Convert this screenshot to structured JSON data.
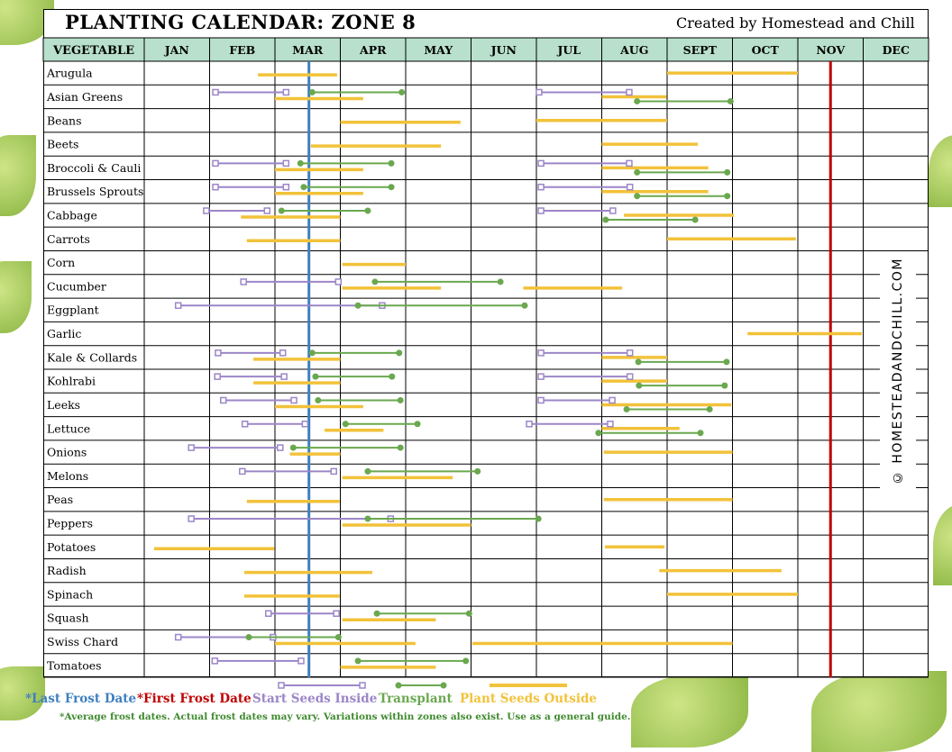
{
  "title": "PLANTING CALENDAR: ZONE 8",
  "credit": "Created by Homestead and Chill",
  "watermark": "© HOMESTEADANDCHILL.COM",
  "legend": {
    "last_frost": "*Last Frost Date",
    "first_frost": "*First Frost Date",
    "inside": "Start Seeds Inside",
    "transplant": "Transplant",
    "outside": "Plant Seeds Outside"
  },
  "note": "*Average frost dates. Actual frost dates may vary. Variations within zones also exist. Use as a general guide.",
  "colors": {
    "header": "#b8e0cc",
    "inside": "#9c86c8",
    "transplant": "#6aa84f",
    "outside": "#f2c23a",
    "last_frost": "#3d7fc0",
    "first_frost": "#c00000"
  },
  "chart_data": {
    "type": "gantt",
    "header_label": "Vegetable",
    "months": [
      "Jan",
      "Feb",
      "Mar",
      "Apr",
      "May",
      "Jun",
      "Jul",
      "Aug",
      "Sept",
      "Oct",
      "Nov",
      "Dec"
    ],
    "x_units": "months from Jan 1 (0-12)",
    "last_frost": 2.52,
    "first_frost": 10.5,
    "rows": [
      {
        "name": "Arugula",
        "inside": [],
        "transplant": [],
        "outside": [
          [
            1.74,
            2.95
          ],
          [
            8.0,
            10.0
          ]
        ]
      },
      {
        "name": "Asian Greens",
        "inside": [
          [
            1.09,
            2.17
          ],
          [
            6.04,
            7.42
          ]
        ],
        "transplant": [
          [
            2.57,
            3.94
          ],
          [
            7.54,
            8.97
          ]
        ],
        "outside": [
          [
            2.0,
            3.35
          ],
          [
            7.0,
            7.99
          ]
        ]
      },
      {
        "name": "Beans",
        "inside": [],
        "transplant": [],
        "outside": [
          [
            3.0,
            4.84
          ],
          [
            6.0,
            8.0
          ]
        ]
      },
      {
        "name": "Beets",
        "inside": [],
        "transplant": [],
        "outside": [
          [
            2.55,
            4.54
          ],
          [
            7.0,
            8.47
          ]
        ]
      },
      {
        "name": "Broccoli & Cauli",
        "inside": [
          [
            1.09,
            2.17
          ],
          [
            6.07,
            7.42
          ]
        ],
        "transplant": [
          [
            2.39,
            3.78
          ],
          [
            7.54,
            8.92
          ]
        ],
        "outside": [
          [
            2.0,
            3.35
          ],
          [
            7.0,
            8.63
          ]
        ]
      },
      {
        "name": "Brussels Sprouts",
        "inside": [
          [
            1.09,
            2.17
          ],
          [
            6.07,
            7.43
          ]
        ],
        "transplant": [
          [
            2.44,
            3.78
          ],
          [
            7.54,
            8.92
          ]
        ],
        "outside": [
          [
            2.0,
            3.35
          ],
          [
            7.0,
            8.63
          ]
        ]
      },
      {
        "name": "Cabbage",
        "inside": [
          [
            0.95,
            1.88
          ],
          [
            6.07,
            7.17
          ]
        ],
        "transplant": [
          [
            2.1,
            3.42
          ],
          [
            7.06,
            8.43
          ]
        ],
        "outside": [
          [
            1.48,
            3.0
          ],
          [
            7.34,
            9.02
          ]
        ]
      },
      {
        "name": "Carrots",
        "inside": [],
        "transplant": [],
        "outside": [
          [
            1.57,
            3.0
          ],
          [
            8.0,
            9.97
          ]
        ]
      },
      {
        "name": "Corn",
        "inside": [],
        "transplant": [],
        "outside": [
          [
            3.03,
            4.0
          ]
        ]
      },
      {
        "name": "Cucumber",
        "inside": [
          [
            1.52,
            2.97
          ]
        ],
        "transplant": [
          [
            3.53,
            5.45
          ]
        ],
        "outside": [
          [
            3.03,
            4.54
          ],
          [
            5.8,
            7.31
          ]
        ]
      },
      {
        "name": "Eggplant",
        "inside": [
          [
            0.52,
            3.64
          ]
        ],
        "transplant": [
          [
            3.27,
            5.82
          ]
        ],
        "outside": []
      },
      {
        "name": "Garlic",
        "inside": [],
        "transplant": [],
        "outside": [
          [
            9.23,
            10.98
          ]
        ]
      },
      {
        "name": "Kale & Collards",
        "inside": [
          [
            1.13,
            2.12
          ],
          [
            6.07,
            7.43
          ]
        ],
        "transplant": [
          [
            2.57,
            3.9
          ],
          [
            7.56,
            8.91
          ]
        ],
        "outside": [
          [
            1.67,
            3.0
          ],
          [
            7.0,
            8.0
          ]
        ]
      },
      {
        "name": "Kohlrabi",
        "inside": [
          [
            1.12,
            2.14
          ],
          [
            6.07,
            7.43
          ]
        ],
        "transplant": [
          [
            2.62,
            3.79
          ],
          [
            7.57,
            8.88
          ]
        ],
        "outside": [
          [
            1.67,
            3.0
          ],
          [
            7.0,
            8.0
          ]
        ]
      },
      {
        "name": "Leeks",
        "inside": [
          [
            1.21,
            2.29
          ],
          [
            6.07,
            7.16
          ]
        ],
        "transplant": [
          [
            2.66,
            3.92
          ],
          [
            7.38,
            8.65
          ]
        ],
        "outside": [
          [
            2.0,
            3.35
          ],
          [
            7.0,
            8.98
          ]
        ]
      },
      {
        "name": "Lettuce",
        "inside": [
          [
            1.54,
            2.46
          ],
          [
            5.89,
            7.13
          ]
        ],
        "transplant": [
          [
            3.08,
            4.18
          ],
          [
            6.95,
            8.51
          ]
        ],
        "outside": [
          [
            2.76,
            3.66
          ],
          [
            7.0,
            8.19
          ]
        ]
      },
      {
        "name": "Onions",
        "inside": [
          [
            0.72,
            2.08
          ]
        ],
        "transplant": [
          [
            2.28,
            3.92
          ]
        ],
        "outside": [
          [
            2.23,
            3.0
          ],
          [
            7.03,
            9.0
          ]
        ]
      },
      {
        "name": "Melons",
        "inside": [
          [
            1.5,
            2.9
          ]
        ],
        "transplant": [
          [
            3.42,
            5.1
          ]
        ],
        "outside": [
          [
            3.03,
            4.72
          ]
        ]
      },
      {
        "name": "Peas",
        "inside": [],
        "transplant": [],
        "outside": [
          [
            1.57,
            2.99
          ],
          [
            7.03,
            9.0
          ]
        ]
      },
      {
        "name": "Peppers",
        "inside": [
          [
            0.72,
            3.77
          ]
        ],
        "transplant": [
          [
            3.42,
            6.03
          ]
        ],
        "outside": [
          [
            3.03,
            5.0
          ]
        ]
      },
      {
        "name": "Potatoes",
        "inside": [],
        "transplant": [],
        "outside": [
          [
            0.15,
            1.99
          ],
          [
            7.05,
            7.96
          ]
        ]
      },
      {
        "name": "Radish",
        "inside": [],
        "transplant": [],
        "outside": [
          [
            1.53,
            3.49
          ],
          [
            7.88,
            9.75
          ]
        ]
      },
      {
        "name": "Spinach",
        "inside": [],
        "transplant": [],
        "outside": [
          [
            1.53,
            2.99
          ],
          [
            8.0,
            10.0
          ]
        ]
      },
      {
        "name": "Squash",
        "inside": [
          [
            1.9,
            2.94
          ]
        ],
        "transplant": [
          [
            3.56,
            4.97
          ]
        ],
        "outside": [
          [
            3.03,
            4.46
          ]
        ]
      },
      {
        "name": "Swiss Chard",
        "inside": [
          [
            0.52,
            1.97
          ]
        ],
        "transplant": [
          [
            1.6,
            2.97
          ]
        ],
        "outside": [
          [
            2.0,
            4.15
          ],
          [
            5.02,
            9.0
          ]
        ]
      },
      {
        "name": "Tomatoes",
        "inside": [
          [
            1.08,
            2.4
          ]
        ],
        "transplant": [
          [
            3.27,
            4.92
          ]
        ],
        "outside": [
          [
            3.0,
            4.46
          ]
        ]
      }
    ]
  }
}
